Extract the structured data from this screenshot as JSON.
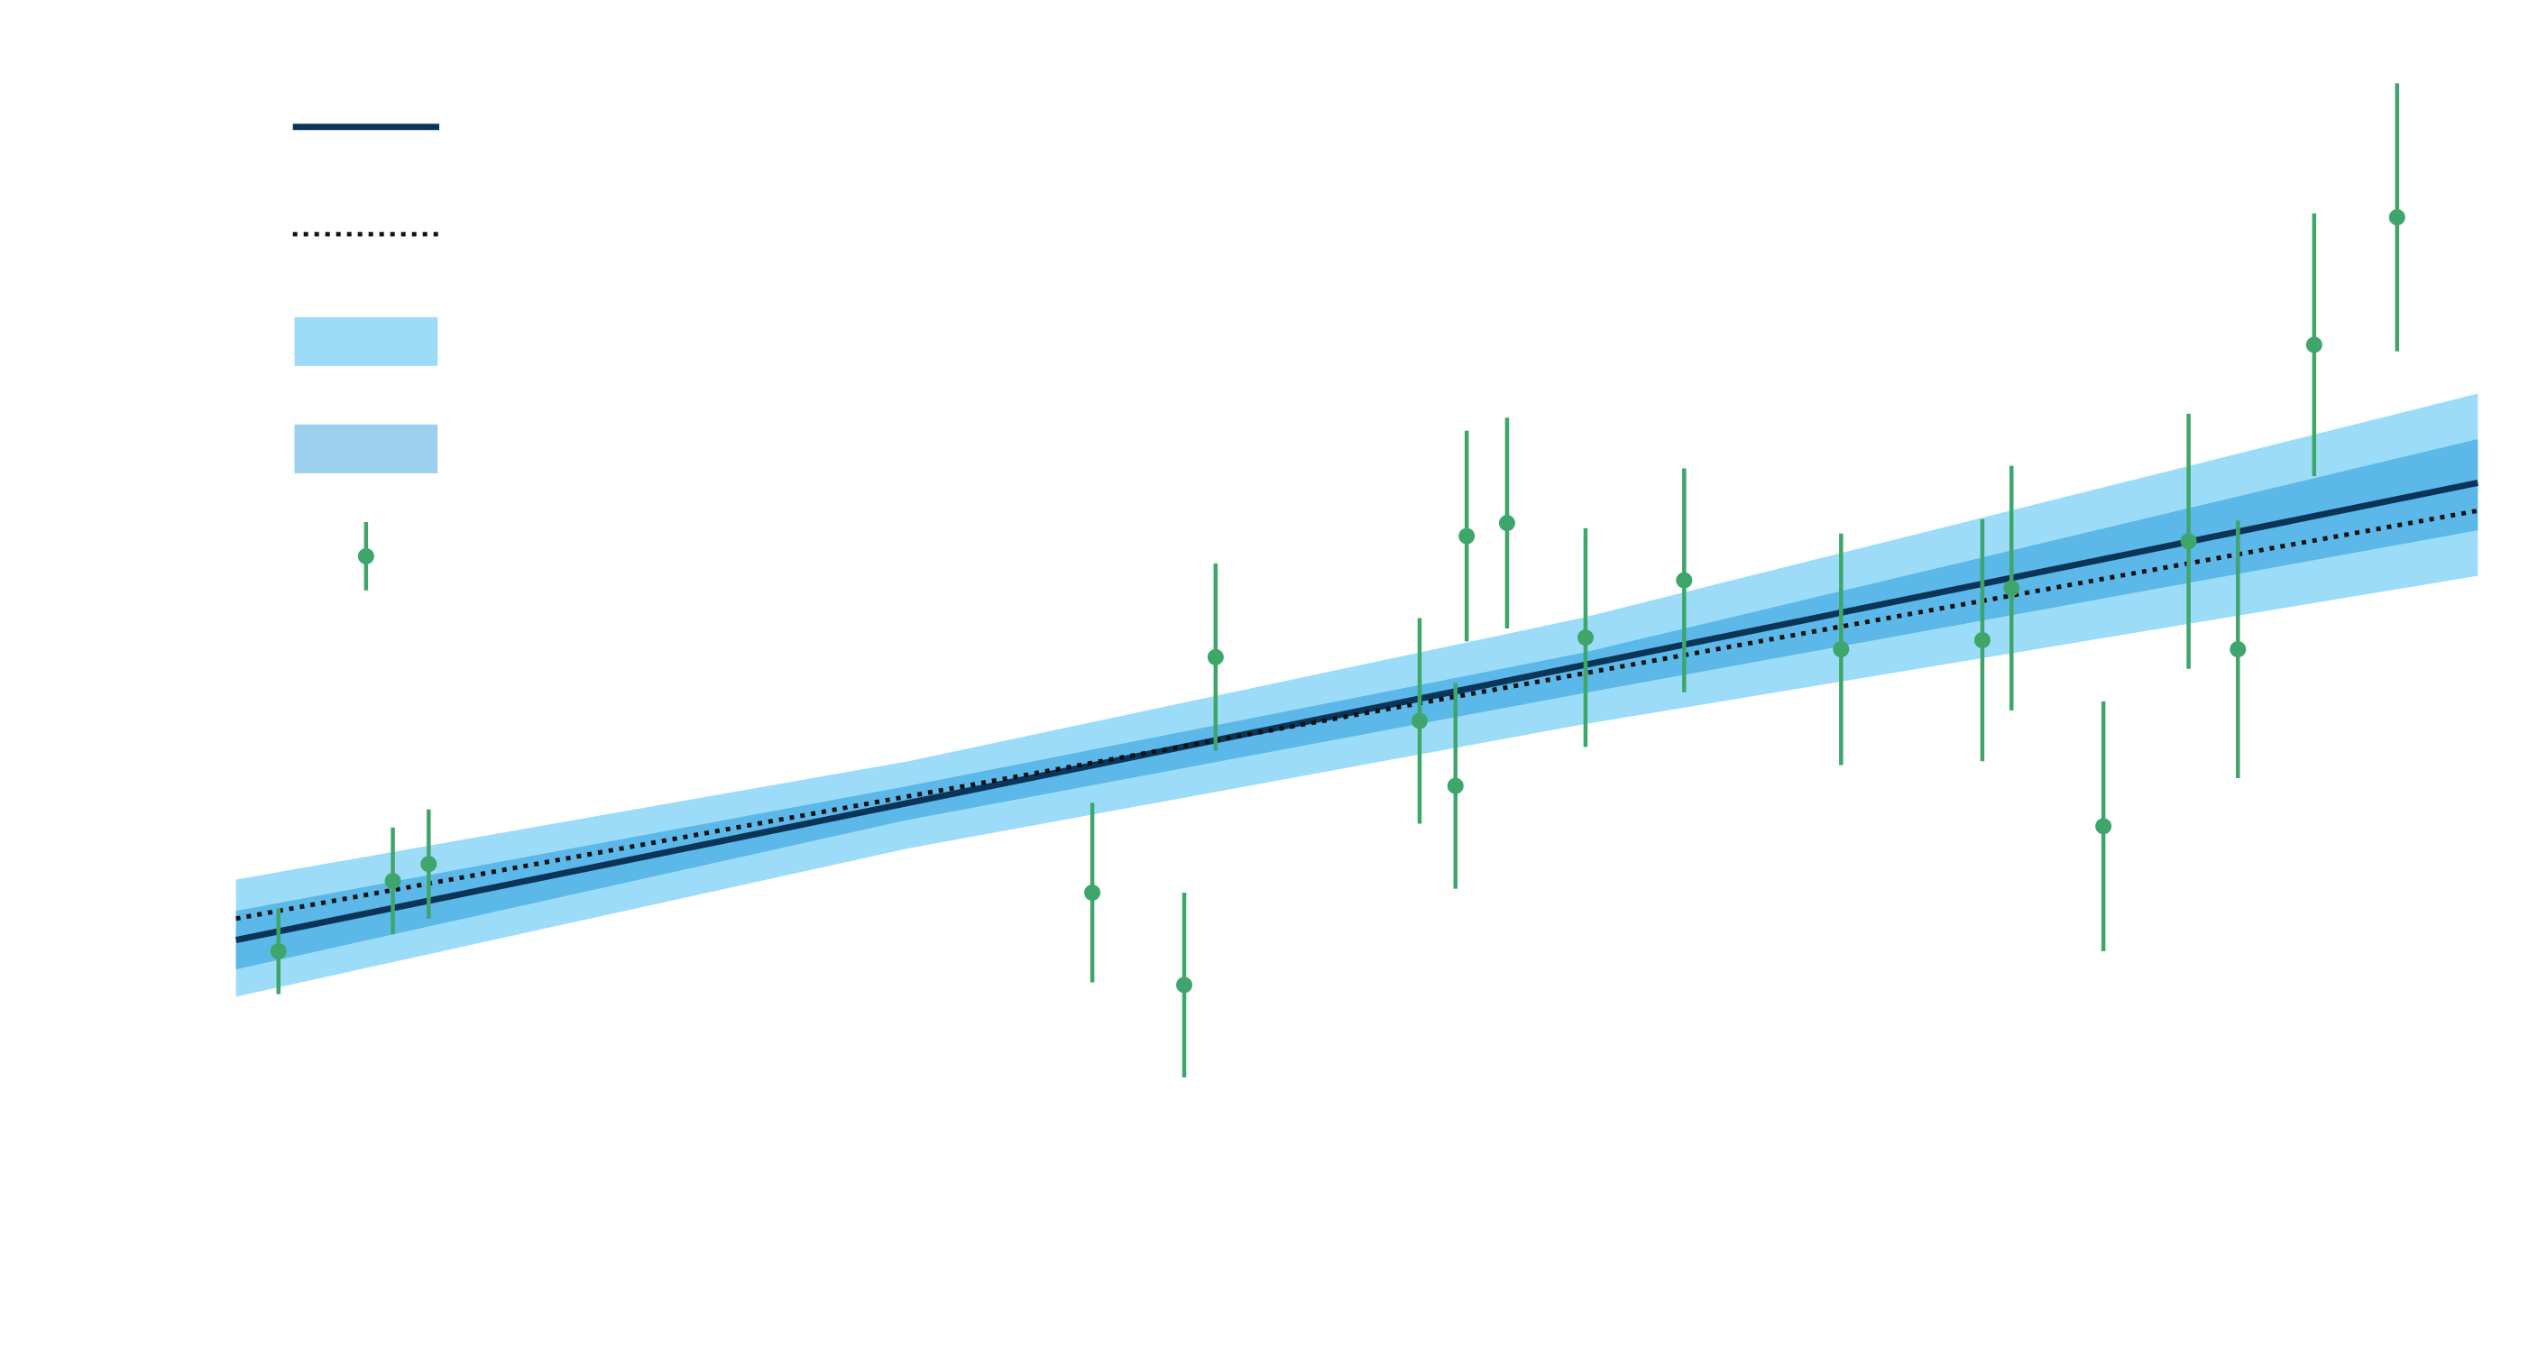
{
  "chart_data": {
    "type": "line",
    "xlim": [
      0,
      100
    ],
    "ylim": [
      0,
      100
    ],
    "series": [
      {
        "type": "band",
        "color": "#9ddcf9",
        "x": [
          0,
          30,
          60,
          100
        ],
        "upper": [
          32.4,
          41.5,
          52.5,
          69.75
        ],
        "lower": [
          23.4,
          34.8,
          44.3,
          55.75
        ]
      },
      {
        "type": "band",
        "color": "#5bb8e8",
        "x": [
          0,
          30,
          60,
          100
        ],
        "upper": [
          30,
          39.6,
          49.8,
          66.25
        ],
        "lower": [
          25.5,
          37.0,
          46.7,
          59.25
        ]
      },
      {
        "type": "line",
        "style": "solid",
        "color": "#0b3558",
        "x": [
          0,
          100
        ],
        "values": [
          27.75,
          62.9
        ]
      },
      {
        "type": "line",
        "style": "dotted",
        "color": "#111111",
        "x": [
          0,
          100
        ],
        "values": [
          29.4,
          60.75
        ]
      },
      {
        "type": "errorbar",
        "color": "#3fa66b",
        "x": [
          1.9,
          7.0,
          8.6,
          38.2,
          42.3,
          43.7,
          52.8,
          54.4,
          54.9,
          56.7,
          60.2,
          64.6,
          71.6,
          77.9,
          79.2,
          83.3,
          87.1,
          89.3,
          92.7,
          96.4
        ],
        "values": [
          26.9,
          32.3,
          33.6,
          31.4,
          24.3,
          49.5,
          44.6,
          39.6,
          58.8,
          59.8,
          51.0,
          55.4,
          50.1,
          50.8,
          54.8,
          36.5,
          58.4,
          50.1,
          73.5,
          83.3
        ],
        "errors": [
          3.3,
          4.1,
          4.2,
          6.9,
          7.1,
          7.2,
          7.9,
          7.9,
          8.1,
          8.1,
          8.4,
          8.6,
          8.9,
          9.3,
          9.4,
          9.6,
          9.8,
          9.9,
          10.1,
          10.3
        ]
      }
    ]
  }
}
